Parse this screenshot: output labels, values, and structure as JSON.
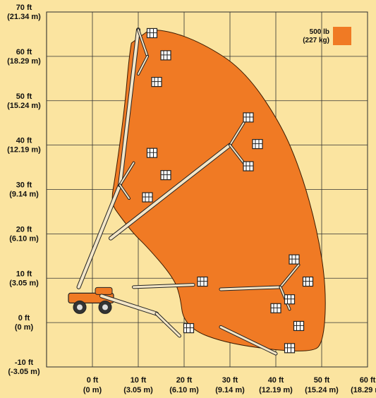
{
  "chart_data": {
    "type": "area",
    "title": "",
    "xlabel": "",
    "ylabel": "",
    "x_unit": "ft",
    "y_unit": "ft",
    "xlim": [
      -10,
      60
    ],
    "ylim": [
      -10,
      70
    ],
    "grid": true,
    "legend_position": "top-right",
    "x_ticks": [
      {
        "value": 0,
        "label": "0 ft",
        "sub": "(0 m)"
      },
      {
        "value": 10,
        "label": "10 ft",
        "sub": "(3.05 m)"
      },
      {
        "value": 20,
        "label": "20 ft",
        "sub": "(6.10 m)"
      },
      {
        "value": 30,
        "label": "30 ft",
        "sub": "(9.14 m)"
      },
      {
        "value": 40,
        "label": "40 ft",
        "sub": "(12.19 m)"
      },
      {
        "value": 50,
        "label": "50 ft",
        "sub": "(15.24 m)"
      },
      {
        "value": 60,
        "label": "60 ft",
        "sub": "(18.29 m)"
      }
    ],
    "y_ticks": [
      {
        "value": 70,
        "label": "70 ft",
        "sub": "(21.34 m)"
      },
      {
        "value": 60,
        "label": "60 ft",
        "sub": "(18.29 m)"
      },
      {
        "value": 50,
        "label": "50 ft",
        "sub": "(15.24 m)"
      },
      {
        "value": 40,
        "label": "40 ft",
        "sub": "(12.19 m)"
      },
      {
        "value": 30,
        "label": "30 ft",
        "sub": "(9.14 m)"
      },
      {
        "value": 20,
        "label": "20 ft",
        "sub": "(6.10 m)"
      },
      {
        "value": 10,
        "label": "10 ft",
        "sub": "(3.05 m)"
      },
      {
        "value": 0,
        "label": "0 ft",
        "sub": "(0 m)"
      },
      {
        "value": -10,
        "label": "-10 ft",
        "sub": "(-3.05 m)"
      }
    ],
    "series": [
      {
        "name": "500 lb (227 kg)",
        "color": "#f07a24",
        "envelope": [
          [
            9,
            66
          ],
          [
            16,
            66
          ],
          [
            24,
            63
          ],
          [
            33,
            57
          ],
          [
            41,
            45
          ],
          [
            45.5,
            34
          ],
          [
            49,
            21
          ],
          [
            51,
            8
          ],
          [
            50.5,
            -4
          ],
          [
            48,
            -7
          ],
          [
            30,
            -5
          ],
          [
            20,
            -1
          ],
          [
            19,
            7
          ],
          [
            17,
            11
          ],
          [
            12,
            17
          ],
          [
            9,
            20
          ],
          [
            6,
            24
          ],
          [
            4,
            27
          ],
          [
            5,
            33
          ],
          [
            7,
            48
          ],
          [
            8,
            60
          ],
          [
            9,
            66
          ]
        ]
      }
    ],
    "legend": {
      "label": "500 lb",
      "sub": "(227 kg)"
    }
  }
}
